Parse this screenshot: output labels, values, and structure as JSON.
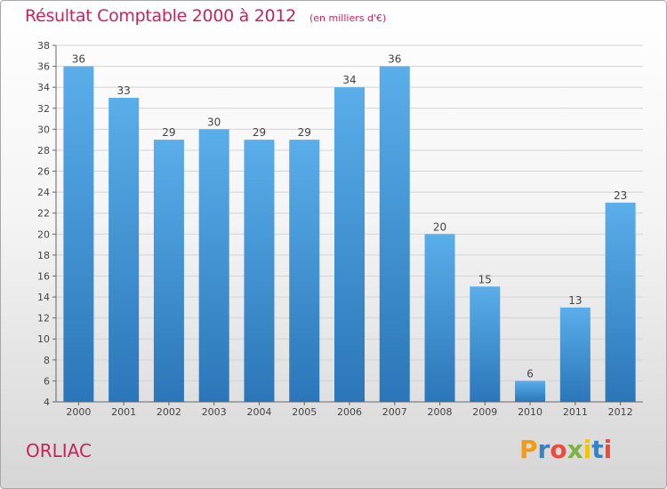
{
  "header": {
    "title": "Résultat Comptable 2000 à 2012",
    "unit": "(en milliers d'€)"
  },
  "footer": {
    "commune": "ORLIAC",
    "logo_text": "Proxiti",
    "logo_colors": [
      "#f39c12",
      "#3b82c4",
      "#e74c3c",
      "#7cb342",
      "#f1c40f",
      "#3b82c4",
      "#e74c3c"
    ]
  },
  "chart_data": {
    "type": "bar",
    "categories": [
      "2000",
      "2001",
      "2002",
      "2003",
      "2004",
      "2005",
      "2006",
      "2007",
      "2008",
      "2009",
      "2010",
      "2011",
      "2012"
    ],
    "values": [
      36,
      33,
      29,
      30,
      29,
      29,
      34,
      36,
      20,
      15,
      6,
      13,
      23
    ],
    "ylim": [
      4,
      38
    ],
    "yticks": [
      4,
      6,
      8,
      10,
      12,
      14,
      16,
      18,
      20,
      22,
      24,
      26,
      28,
      30,
      32,
      34,
      36,
      38
    ],
    "grid": true,
    "bar_color": "#3a8fd6",
    "title": "Résultat Comptable 2000 à 2012",
    "xlabel": "",
    "ylabel": ""
  }
}
